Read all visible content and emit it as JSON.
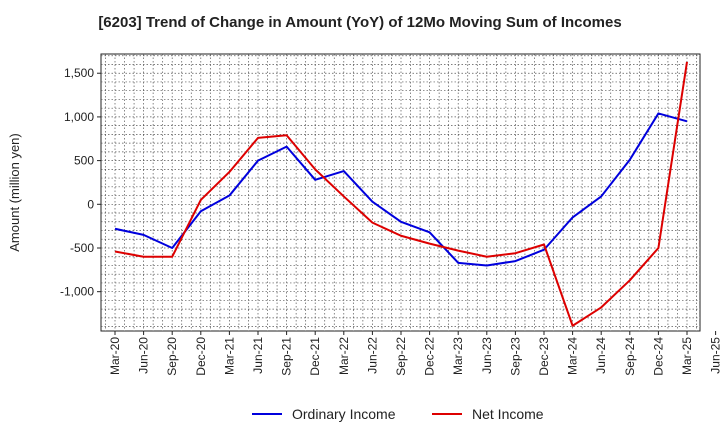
{
  "chart_data": {
    "type": "line",
    "title": "[6203]  Trend of Change in Amount (YoY) of 12Mo Moving Sum of Incomes",
    "ylabel": "Amount (million yen)",
    "xlabel": "",
    "ylim": [
      -1450,
      1720
    ],
    "yticks": [
      1500,
      1000,
      500,
      0,
      -500,
      -1000
    ],
    "ytick_labels": [
      "1,500",
      "1,000",
      "500",
      "0",
      "-500",
      "-1,000"
    ],
    "x": [
      "Mar-20",
      "Jun-20",
      "Sep-20",
      "Dec-20",
      "Mar-21",
      "Jun-21",
      "Sep-21",
      "Dec-21",
      "Mar-22",
      "Jun-22",
      "Sep-22",
      "Dec-22",
      "Mar-23",
      "Jun-23",
      "Sep-23",
      "Dec-23",
      "Mar-24",
      "Jun-24",
      "Sep-24",
      "Dec-24",
      "Mar-25",
      "Jun-25"
    ],
    "grid": true,
    "legend_position": "bottom",
    "series": [
      {
        "name": "Ordinary Income",
        "color": "#0000dd",
        "values": [
          -280,
          -350,
          -500,
          -80,
          100,
          500,
          660,
          280,
          380,
          30,
          -200,
          -320,
          -670,
          -700,
          -650,
          -520,
          -150,
          90,
          510,
          1040,
          950,
          null
        ]
      },
      {
        "name": "Net Income",
        "color": "#dd0000",
        "values": [
          -540,
          -600,
          -600,
          50,
          370,
          760,
          790,
          400,
          90,
          -210,
          -360,
          -450,
          -530,
          -600,
          -560,
          -460,
          -1390,
          -1180,
          -870,
          -500,
          1630,
          null
        ]
      }
    ]
  }
}
